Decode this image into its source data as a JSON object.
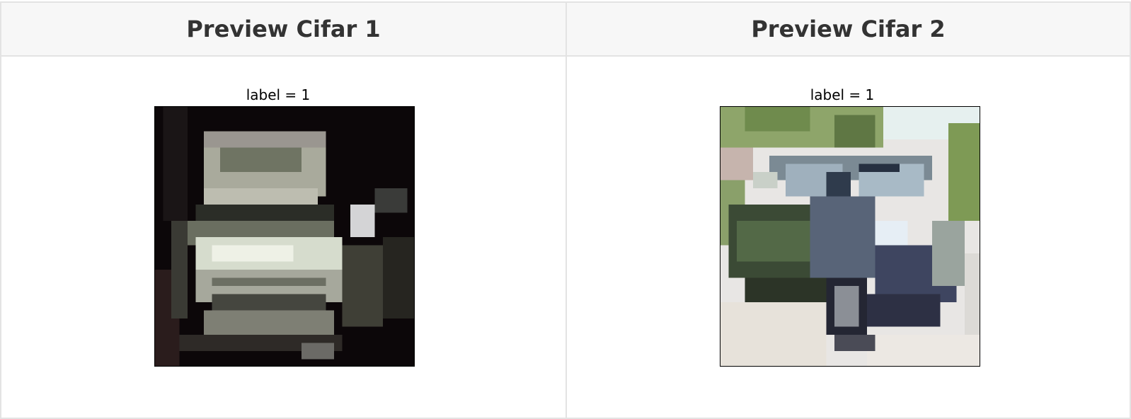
{
  "previews": [
    {
      "header": "Preview Cifar 1",
      "title": "label = 1",
      "image": "cifar-car-image-dark-truck"
    },
    {
      "header": "Preview Cifar 2",
      "title": "label = 1",
      "image": "cifar-car-image-grey-hatchback"
    }
  ]
}
